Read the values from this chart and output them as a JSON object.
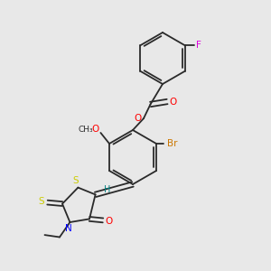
{
  "bg_color": "#e8e8e8",
  "bond_color": "#2a2a2a",
  "colors": {
    "O": "#ff0000",
    "S": "#cccc00",
    "N": "#0000ff",
    "Br": "#cc7700",
    "F": "#dd00dd",
    "H": "#008080"
  },
  "lw": 1.3,
  "fs": 7.5,
  "fig_size": [
    3.0,
    3.0
  ],
  "dpi": 100
}
